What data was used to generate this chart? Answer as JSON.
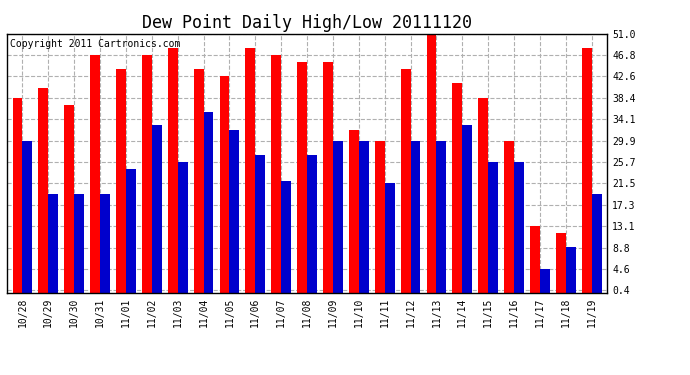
{
  "title": "Dew Point Daily High/Low 20111120",
  "copyright": "Copyright 2011 Cartronics.com",
  "dates": [
    "10/28",
    "10/29",
    "10/30",
    "10/31",
    "11/01",
    "11/02",
    "11/03",
    "11/04",
    "11/05",
    "11/06",
    "11/07",
    "11/08",
    "11/09",
    "11/10",
    "11/11",
    "11/12",
    "11/13",
    "11/14",
    "11/15",
    "11/16",
    "11/17",
    "11/18",
    "11/19"
  ],
  "highs": [
    38.4,
    40.3,
    37.0,
    46.8,
    44.0,
    46.8,
    48.2,
    44.0,
    42.6,
    48.2,
    46.8,
    45.4,
    45.4,
    32.0,
    29.9,
    44.0,
    51.0,
    41.2,
    38.4,
    29.9,
    13.1,
    11.7,
    48.2
  ],
  "lows": [
    29.9,
    19.4,
    19.4,
    19.4,
    24.3,
    33.0,
    25.7,
    35.5,
    32.0,
    27.1,
    22.0,
    27.1,
    29.9,
    29.9,
    21.5,
    29.9,
    29.9,
    33.0,
    25.7,
    25.7,
    4.6,
    9.0,
    19.4
  ],
  "yticks": [
    0.4,
    4.6,
    8.8,
    13.1,
    17.3,
    21.5,
    25.7,
    29.9,
    34.1,
    38.4,
    42.6,
    46.8,
    51.0
  ],
  "ylim": [
    0.0,
    51.0
  ],
  "bar_width": 0.38,
  "high_color": "#ff0000",
  "low_color": "#0000cc",
  "bg_color": "#ffffff",
  "grid_color": "#b0b0b0",
  "title_fontsize": 12,
  "copyright_fontsize": 7,
  "tick_fontsize": 7
}
